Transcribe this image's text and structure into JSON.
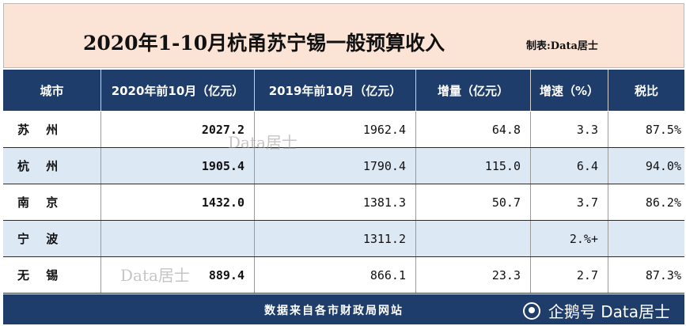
{
  "title": "2020年1-10月杭甬苏宁锡一般预算收入",
  "maker": "制表:Data居士",
  "headers": [
    "城市",
    "2020年前10月（亿元）",
    "2019年前10月（亿元）",
    "增量（亿元）",
    "增速（%）",
    "税比"
  ],
  "rows": [
    {
      "city": "苏 州",
      "v2020": "2027.2",
      "v2019": "1962.4",
      "inc": "64.8",
      "rate": "3.3",
      "tax": "87.5%"
    },
    {
      "city": "杭 州",
      "v2020": "1905.4",
      "v2019": "1790.4",
      "inc": "115.0",
      "rate": "6.4",
      "tax": "94.0%"
    },
    {
      "city": "南 京",
      "v2020": "1432.0",
      "v2019": "1381.3",
      "inc": "50.7",
      "rate": "3.7",
      "tax": "86.2%"
    },
    {
      "city": "宁 波",
      "v2020": "",
      "v2019": "1311.2",
      "inc": "",
      "rate": "2.%+",
      "tax": ""
    },
    {
      "city": "无 锡",
      "v2020": "889.4",
      "v2019": "866.1",
      "inc": "23.3",
      "rate": "2.7",
      "tax": "87.3%"
    }
  ],
  "footer": "数据来自各市财政局网站",
  "brand": "企鹅号 Data居士",
  "watermark": "Data居士",
  "colors": {
    "header_bg": "#1f3d6a",
    "title_bg": "#fbe4d6",
    "alt_row": "#dde8f5"
  }
}
